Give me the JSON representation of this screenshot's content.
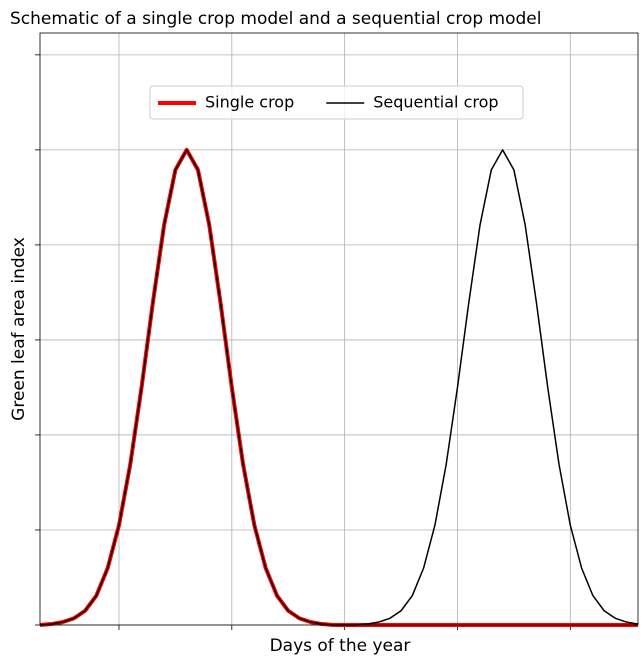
{
  "chart_data": {
    "type": "line",
    "title": "Schematic of a single crop model and a sequential crop model",
    "x_label": "Days of the year",
    "y_label": "Green leaf area index",
    "x": [
      0.3,
      0.4,
      0.5,
      0.6,
      0.7,
      0.8,
      0.9,
      1.0,
      1.1,
      1.2,
      1.3,
      1.4,
      1.5,
      1.6,
      1.7,
      1.8,
      1.9,
      2.0,
      2.1,
      2.2,
      2.3,
      2.4,
      2.5,
      2.6,
      2.7,
      2.8,
      2.9,
      3.0,
      3.1,
      3.2,
      3.3,
      3.4,
      3.5,
      3.6,
      3.7,
      3.8,
      3.9,
      4.0,
      4.1,
      4.2,
      4.3,
      4.4,
      4.5,
      4.6,
      4.7,
      4.8,
      4.9,
      5.0,
      5.1,
      5.2,
      5.3,
      5.4,
      5.5,
      5.6
    ],
    "series": [
      {
        "name": "Single crop",
        "color": "#ff0000",
        "values": [
          0,
          0.01,
          0.03,
          0.07,
          0.15,
          0.31,
          0.6,
          1.05,
          1.69,
          2.5,
          3.39,
          4.21,
          4.79,
          5,
          4.79,
          4.21,
          3.39,
          2.5,
          1.69,
          1.05,
          0.6,
          0.31,
          0.15,
          0.07,
          0.03,
          0.01,
          0,
          0,
          0,
          0,
          0,
          0,
          0,
          0,
          0,
          0,
          0,
          0,
          0,
          0,
          0,
          0,
          0,
          0,
          0,
          0,
          0,
          0,
          0,
          0,
          0,
          0,
          0,
          0
        ]
      },
      {
        "name": "Sequential crop",
        "color": "#000000",
        "values": [
          0,
          0.01,
          0.03,
          0.07,
          0.15,
          0.31,
          0.6,
          1.05,
          1.69,
          2.5,
          3.39,
          4.21,
          4.79,
          5,
          4.79,
          4.21,
          3.39,
          2.5,
          1.69,
          1.05,
          0.6,
          0.31,
          0.15,
          0.07,
          0.03,
          0.01,
          0,
          0,
          0,
          0.01,
          0.03,
          0.07,
          0.15,
          0.31,
          0.6,
          1.05,
          1.69,
          2.5,
          3.39,
          4.21,
          4.79,
          5,
          4.79,
          4.21,
          3.39,
          2.5,
          1.69,
          1.05,
          0.6,
          0.31,
          0.15,
          0.07,
          0.03,
          0.01
        ]
      }
    ],
    "xlim": [
      0.3,
      5.6
    ],
    "xticks": [
      1,
      2,
      3,
      4,
      5
    ],
    "ylim": [
      0,
      6.23
    ],
    "yticks": [
      0,
      1,
      2,
      3,
      4,
      5,
      6
    ],
    "grid": true,
    "legend": "upper center"
  }
}
